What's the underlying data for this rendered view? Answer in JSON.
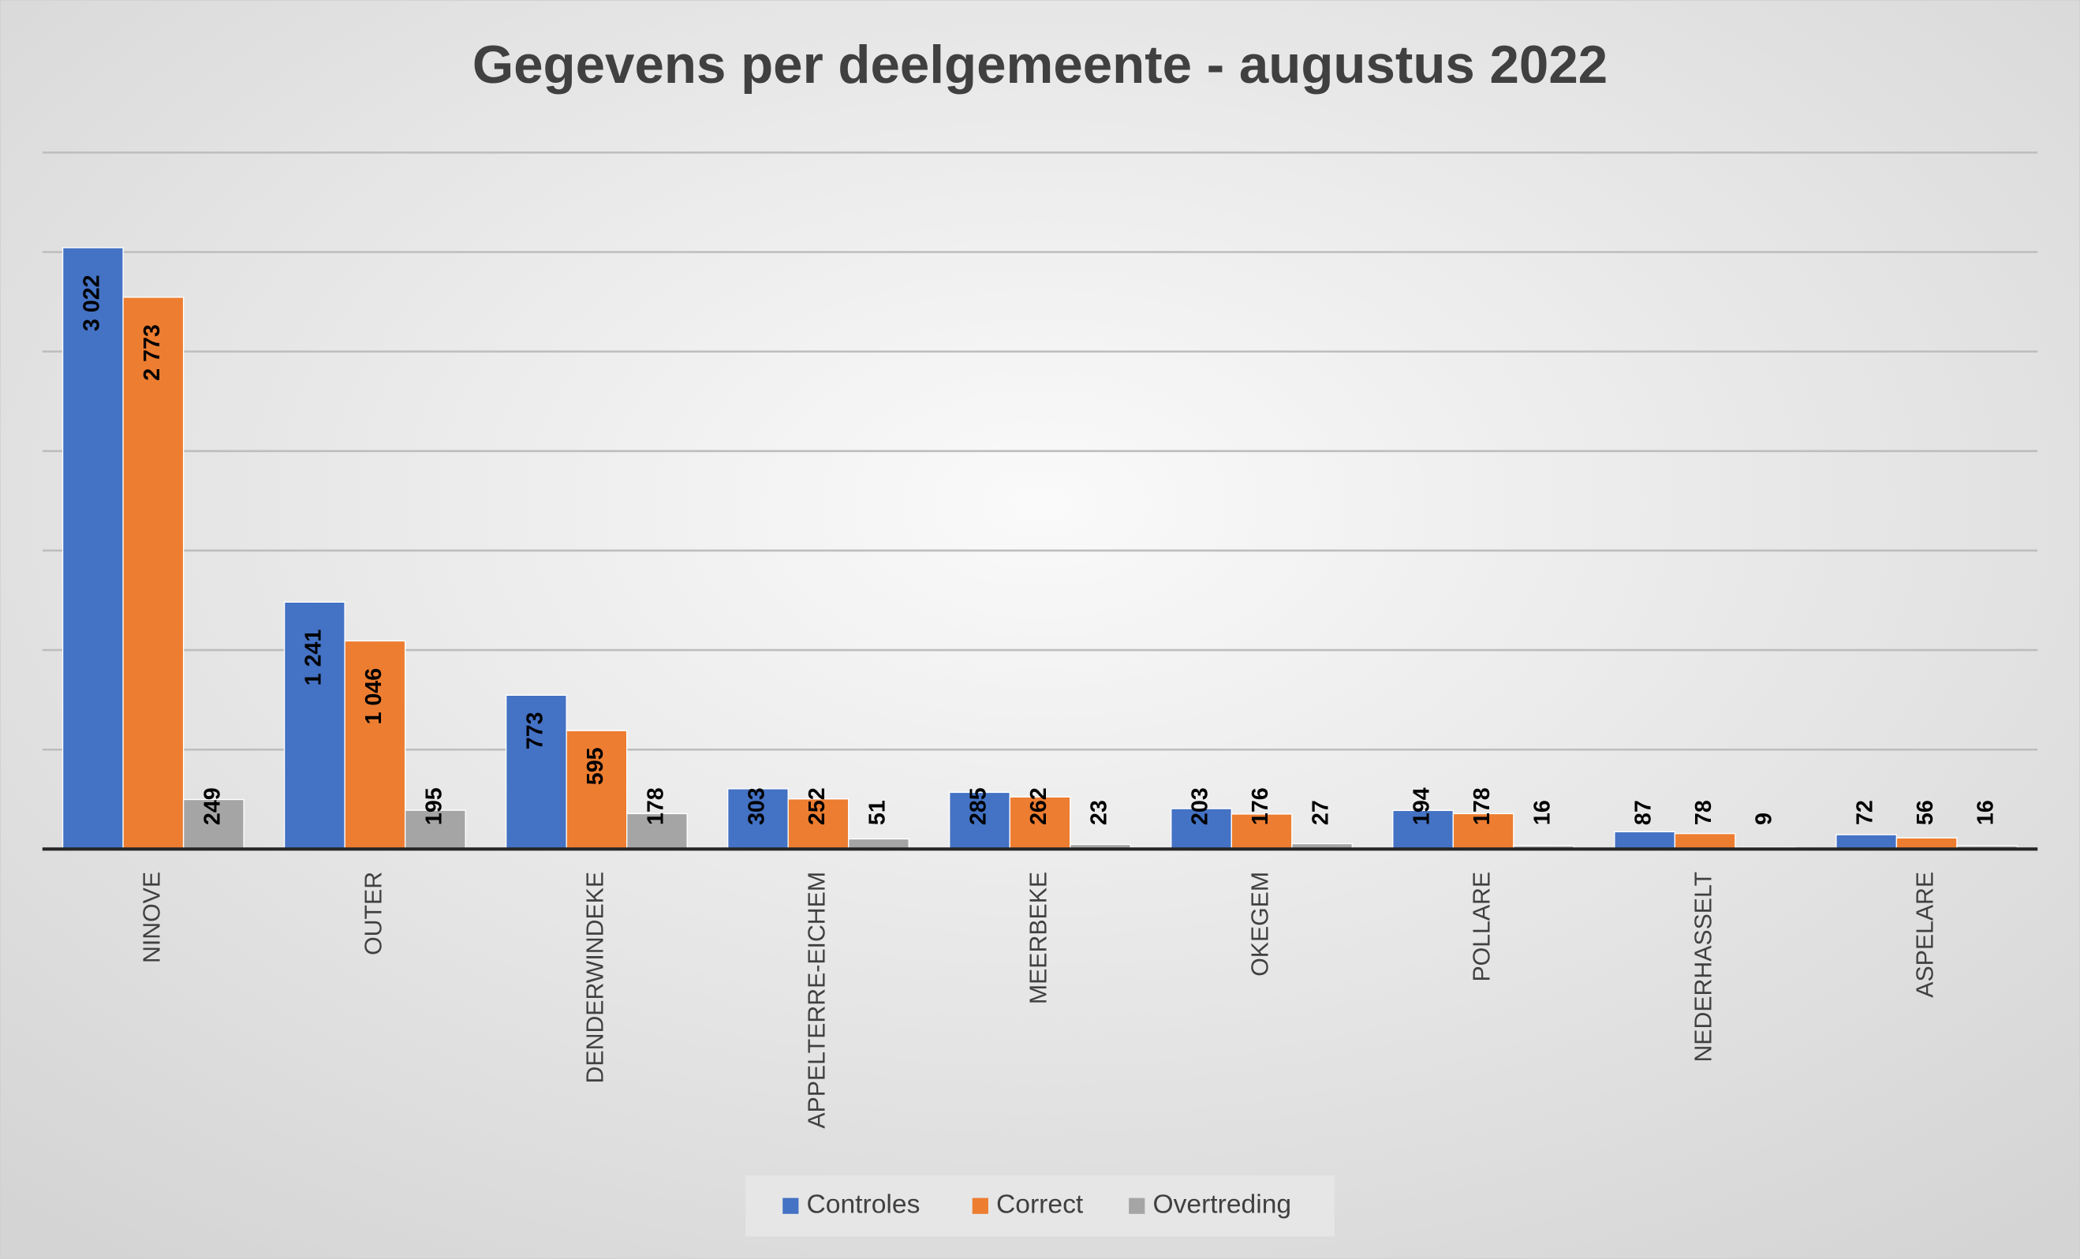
{
  "chart_data": {
    "type": "bar",
    "title": "Gegevens per deelgemeente - augustus 2022",
    "categories": [
      "NINOVE",
      "OUTER",
      "DENDERWINDEKE",
      "APPELTERRE-EICHEM",
      "MEERBEKE",
      "OKEGEM",
      "POLLARE",
      "NEDERHASSELT",
      "ASPELARE"
    ],
    "series": [
      {
        "name": "Controles",
        "color": "#4472c4",
        "values": [
          3022,
          1241,
          773,
          303,
          285,
          203,
          194,
          87,
          72
        ],
        "value_labels": [
          "3 022",
          "1 241",
          "773",
          "303",
          "285",
          "203",
          "194",
          "87",
          "72"
        ]
      },
      {
        "name": "Correct",
        "color": "#ed7d31",
        "values": [
          2773,
          1046,
          595,
          252,
          262,
          176,
          178,
          78,
          56
        ],
        "value_labels": [
          "2 773",
          "1 046",
          "595",
          "252",
          "262",
          "176",
          "178",
          "78",
          "56"
        ]
      },
      {
        "name": "Overtreding",
        "color": "#a5a5a5",
        "values": [
          249,
          195,
          178,
          51,
          23,
          27,
          16,
          9,
          16
        ],
        "value_labels": [
          "249",
          "195",
          "178",
          "51",
          "23",
          "27",
          "16",
          "9",
          "16"
        ]
      }
    ],
    "ylim": [
      0,
      3500
    ],
    "yticks": [
      0,
      500,
      1000,
      1500,
      2000,
      2500,
      3000,
      3500
    ],
    "grid": true,
    "legend": "bottom"
  }
}
